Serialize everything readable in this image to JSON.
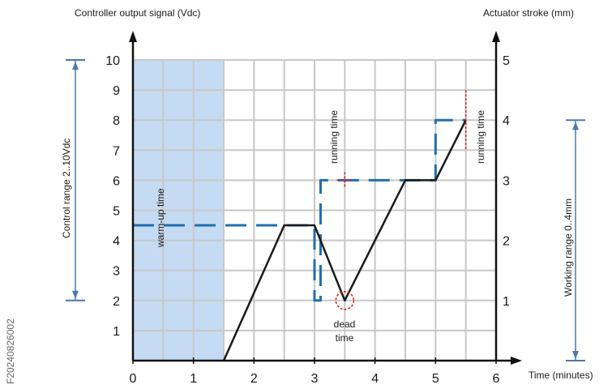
{
  "chart_data": {
    "type": "line",
    "title": "",
    "y_left_label": "Controller output signal (Vdc)",
    "y_right_label": "Actuator stroke (mm)",
    "xlabel": "Time (minutes)",
    "xlim": [
      0,
      6
    ],
    "ylim_left": [
      0,
      10
    ],
    "ylim_right": [
      0,
      5
    ],
    "grid": true,
    "x_ticks": [
      "0",
      "1",
      "2",
      "3",
      "4",
      "5",
      "6"
    ],
    "y_left_ticks": [
      "1",
      "2",
      "3",
      "4",
      "5",
      "6",
      "7",
      "8",
      "9",
      "10"
    ],
    "y_right_ticks": [
      "1",
      "2",
      "3",
      "4",
      "5"
    ],
    "series": [
      {
        "role": "controller-signal",
        "style": "dashed",
        "color": "#1f6fae",
        "points": [
          [
            0,
            4.5
          ],
          [
            3.0,
            4.5
          ],
          [
            3.0,
            2.0
          ],
          [
            3.1,
            2.0
          ],
          [
            3.1,
            6.0
          ],
          [
            3.55,
            6.0
          ],
          [
            5.0,
            6.0
          ],
          [
            5.0,
            8.0
          ],
          [
            5.5,
            8.0
          ]
        ]
      },
      {
        "role": "actuator-stroke",
        "style": "solid",
        "color": "#1a1a1a",
        "points": [
          [
            1.5,
            0
          ],
          [
            2.5,
            4.5
          ],
          [
            3.0,
            4.5
          ],
          [
            3.5,
            2.0
          ],
          [
            4.5,
            6.0
          ],
          [
            5.0,
            6.0
          ],
          [
            5.5,
            8.0
          ]
        ]
      }
    ],
    "shaded_region": {
      "x": [
        0,
        1.5
      ],
      "color": "#c5dbf3",
      "label": "warm-up time"
    },
    "annotations": {
      "running_time_1": "running time",
      "running_time_2": "running time",
      "dead_time_1": "dead",
      "dead_time_2": "time"
    },
    "ranges": {
      "control_range": {
        "label": "Control range  2..10Vdc",
        "y_left": [
          2,
          10
        ]
      },
      "working_range": {
        "label": "Working range 0..4mm",
        "y_right": [
          0,
          4
        ]
      }
    },
    "figure_id": "F20240826002",
    "colors": {
      "range_marker": "#4a78b0",
      "annotation_red": "#d62020",
      "grid": "#c8c8c8"
    }
  }
}
